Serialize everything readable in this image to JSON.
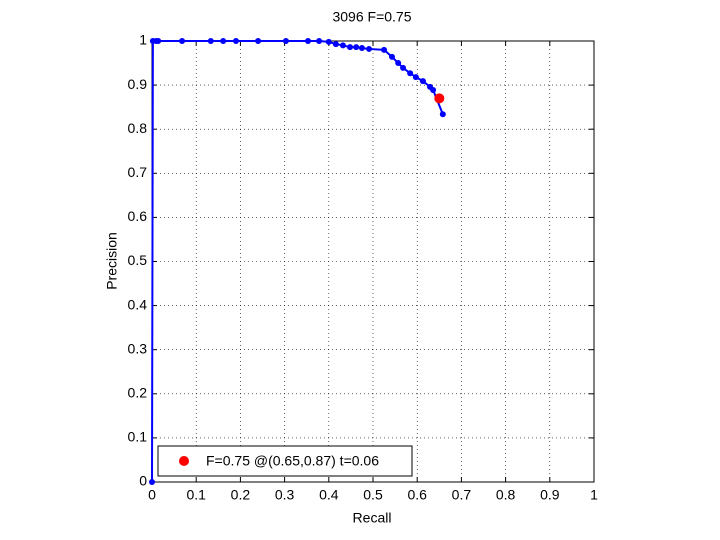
{
  "chart_data": {
    "type": "line",
    "title": "3096 F=0.75",
    "x_label": "Recall",
    "y_label": "Precision",
    "xlim": [
      0,
      1
    ],
    "ylim": [
      0,
      1
    ],
    "xticks": [
      0,
      0.1,
      0.2,
      0.3,
      0.4,
      0.5,
      0.6,
      0.7,
      0.8,
      0.9,
      1
    ],
    "yticks": [
      0,
      0.1,
      0.2,
      0.3,
      0.4,
      0.5,
      0.6,
      0.7,
      0.8,
      0.9,
      1
    ],
    "grid": true,
    "legend": "bottom-left",
    "series": [
      {
        "color": "#0000ff",
        "x": [
          0,
          0.002,
          0.009,
          0.014,
          0.068,
          0.133,
          0.161,
          0.19,
          0.24,
          0.303,
          0.353,
          0.378,
          0.4,
          0.416,
          0.432,
          0.448,
          0.462,
          0.475,
          0.491,
          0.525,
          0.543,
          0.557,
          0.568,
          0.584,
          0.597,
          0.613,
          0.629,
          0.636,
          0.658
        ],
        "values": [
          0,
          1,
          1,
          1,
          1,
          1,
          1,
          1,
          1,
          1,
          1,
          1,
          0.998,
          0.993,
          0.99,
          0.986,
          0.986,
          0.984,
          0.982,
          0.98,
          0.964,
          0.95,
          0.939,
          0.927,
          0.918,
          0.909,
          0.896,
          0.889,
          0.834
        ]
      },
      {
        "name": "F=0.75 @(0.65,0.87) t=0.06",
        "color": "#ff0000",
        "x": [
          0.65
        ],
        "values": [
          0.87
        ]
      }
    ]
  }
}
